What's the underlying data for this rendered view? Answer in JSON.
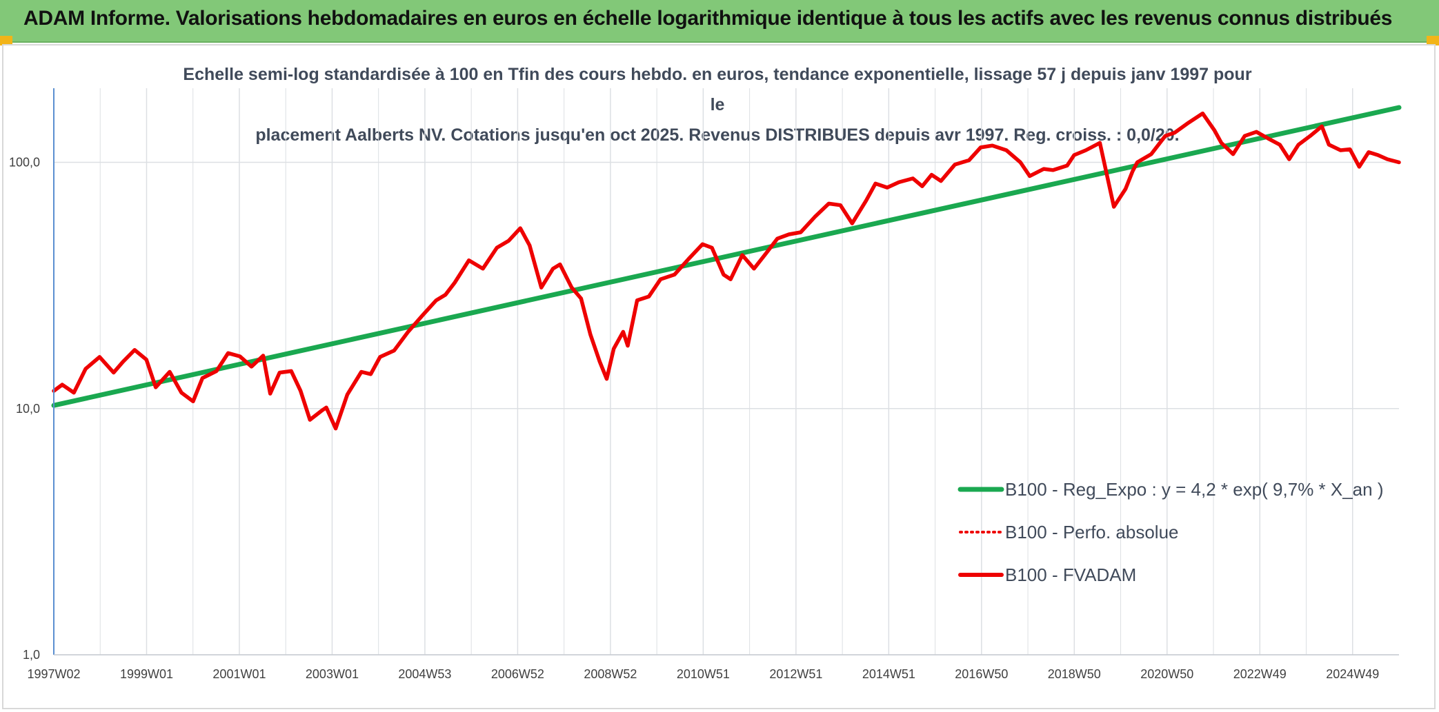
{
  "header": {
    "title": "ADAM Informe. Valorisations hebdomadaires en euros en échelle logarithmique identique à tous les actifs avec les revenus connus distribués"
  },
  "colors": {
    "header_bg": "#82c878",
    "fvadam": "#ee0000",
    "regression": "#1aa850",
    "grid": "#dcdfe3",
    "axis": "#5b8fd0"
  },
  "chart_data": {
    "type": "line",
    "subtitle_line1": "Echelle semi-log standardisée à 100 en Tfin des cours hebdo. en euros, tendance exponentielle, lissage 57 j depuis janv 1997 pour le",
    "subtitle_line2": "placement Aalberts NV. Cotations jusqu'en oct 2025. Revenus DISTRIBUES depuis avr 1997. Reg. croiss. : 0,0/20.",
    "y_scale": "log",
    "ylim": [
      1,
      200
    ],
    "y_ticks": [
      "1,0",
      "10,0",
      "100,0"
    ],
    "x_range": [
      1997.02,
      2025.8
    ],
    "x_ticks": [
      "1997W02",
      "1999W01",
      "2001W01",
      "2003W01",
      "2004W53",
      "2006W52",
      "2008W52",
      "2010W51",
      "2012W51",
      "2014W51",
      "2016W50",
      "2018W50",
      "2020W50",
      "2022W49",
      "2024W49"
    ],
    "grid": true,
    "legend_position": "bottom-right",
    "series": [
      {
        "name": "B100 - Reg_Expo : y = 4,2 * exp( 9,7% *  X_an )",
        "style": "solid-thick",
        "color": "#1aa850",
        "x": [
          1997.02,
          2025.8
        ],
        "y": [
          10.3,
          167
        ]
      },
      {
        "name": "B100 - Perfo. absolue",
        "style": "dotted",
        "color": "#ee0000",
        "x": [],
        "y": []
      },
      {
        "name": "B100 - FVADAM",
        "style": "solid",
        "color": "#ee0000",
        "x": [
          1997.02,
          1997.2,
          1997.45,
          1997.7,
          1998.0,
          1998.3,
          1998.5,
          1998.75,
          1999.0,
          1999.2,
          1999.5,
          1999.75,
          2000.0,
          2000.2,
          2000.5,
          2000.75,
          2001.0,
          2001.25,
          2001.5,
          2001.65,
          2001.85,
          2002.1,
          2002.3,
          2002.5,
          2002.75,
          2002.85,
          2003.05,
          2003.3,
          2003.6,
          2003.8,
          2004.0,
          2004.3,
          2004.6,
          2004.9,
          2005.2,
          2005.4,
          2005.6,
          2005.9,
          2006.2,
          2006.5,
          2006.75,
          2007.0,
          2007.2,
          2007.45,
          2007.7,
          2007.85,
          2008.1,
          2008.3,
          2008.5,
          2008.7,
          2008.85,
          2009.0,
          2009.2,
          2009.3,
          2009.5,
          2009.75,
          2010.0,
          2010.3,
          2010.6,
          2010.9,
          2011.1,
          2011.35,
          2011.5,
          2011.75,
          2012.0,
          2012.25,
          2012.5,
          2012.75,
          2013.0,
          2013.3,
          2013.6,
          2013.85,
          2014.1,
          2014.4,
          2014.6,
          2014.85,
          2015.1,
          2015.4,
          2015.6,
          2015.8,
          2016.0,
          2016.3,
          2016.6,
          2016.85,
          2017.1,
          2017.4,
          2017.7,
          2017.9,
          2018.2,
          2018.4,
          2018.7,
          2018.85,
          2019.1,
          2019.4,
          2019.7,
          2019.95,
          2020.1,
          2020.2,
          2020.5,
          2020.8,
          2021.0,
          2021.3,
          2021.6,
          2021.85,
          2022.0,
          2022.25,
          2022.5,
          2022.75,
          2023.0,
          2023.25,
          2023.45,
          2023.65,
          2023.9,
          2024.15,
          2024.3,
          2024.55,
          2024.75,
          2024.95,
          2025.15,
          2025.35,
          2025.55,
          2025.8
        ],
        "y": [
          11.8,
          12.5,
          11.6,
          14.5,
          16.2,
          14.0,
          15.5,
          17.3,
          15.8,
          12.2,
          14.1,
          11.6,
          10.7,
          13.3,
          14.2,
          16.8,
          16.3,
          14.8,
          16.4,
          11.5,
          14.0,
          14.2,
          11.8,
          9.0,
          9.8,
          10.1,
          8.3,
          11.4,
          14.1,
          13.8,
          16.2,
          17.2,
          20.5,
          23.8,
          27.5,
          29.0,
          32.5,
          40.0,
          37.0,
          45.0,
          48.0,
          54.0,
          46.0,
          31.0,
          37.0,
          38.5,
          31.0,
          28.0,
          20.0,
          15.5,
          13.2,
          17.5,
          20.5,
          18.0,
          27.5,
          28.5,
          33.5,
          35.0,
          40.5,
          46.5,
          45.0,
          35.0,
          33.5,
          42.0,
          37.0,
          42.5,
          49.0,
          51.0,
          52.0,
          60.0,
          68.0,
          67.0,
          56.5,
          70.0,
          82.0,
          79.0,
          83.0,
          86.0,
          80.0,
          89.0,
          84.0,
          98.0,
          102.0,
          115.0,
          117.0,
          112.0,
          100.0,
          88.0,
          94.0,
          93.0,
          97.0,
          107.0,
          112.0,
          120.0,
          66.0,
          78.0,
          92.0,
          100.0,
          108.0,
          128.0,
          132.0,
          145.0,
          158.0,
          135.0,
          120.0,
          108.0,
          128.0,
          133.0,
          125.0,
          118.0,
          103.0,
          118.0,
          128.0,
          140.0,
          118.0,
          112.0,
          113.0,
          96.0,
          110.0,
          107.0,
          103.0,
          100.0
        ]
      }
    ]
  }
}
